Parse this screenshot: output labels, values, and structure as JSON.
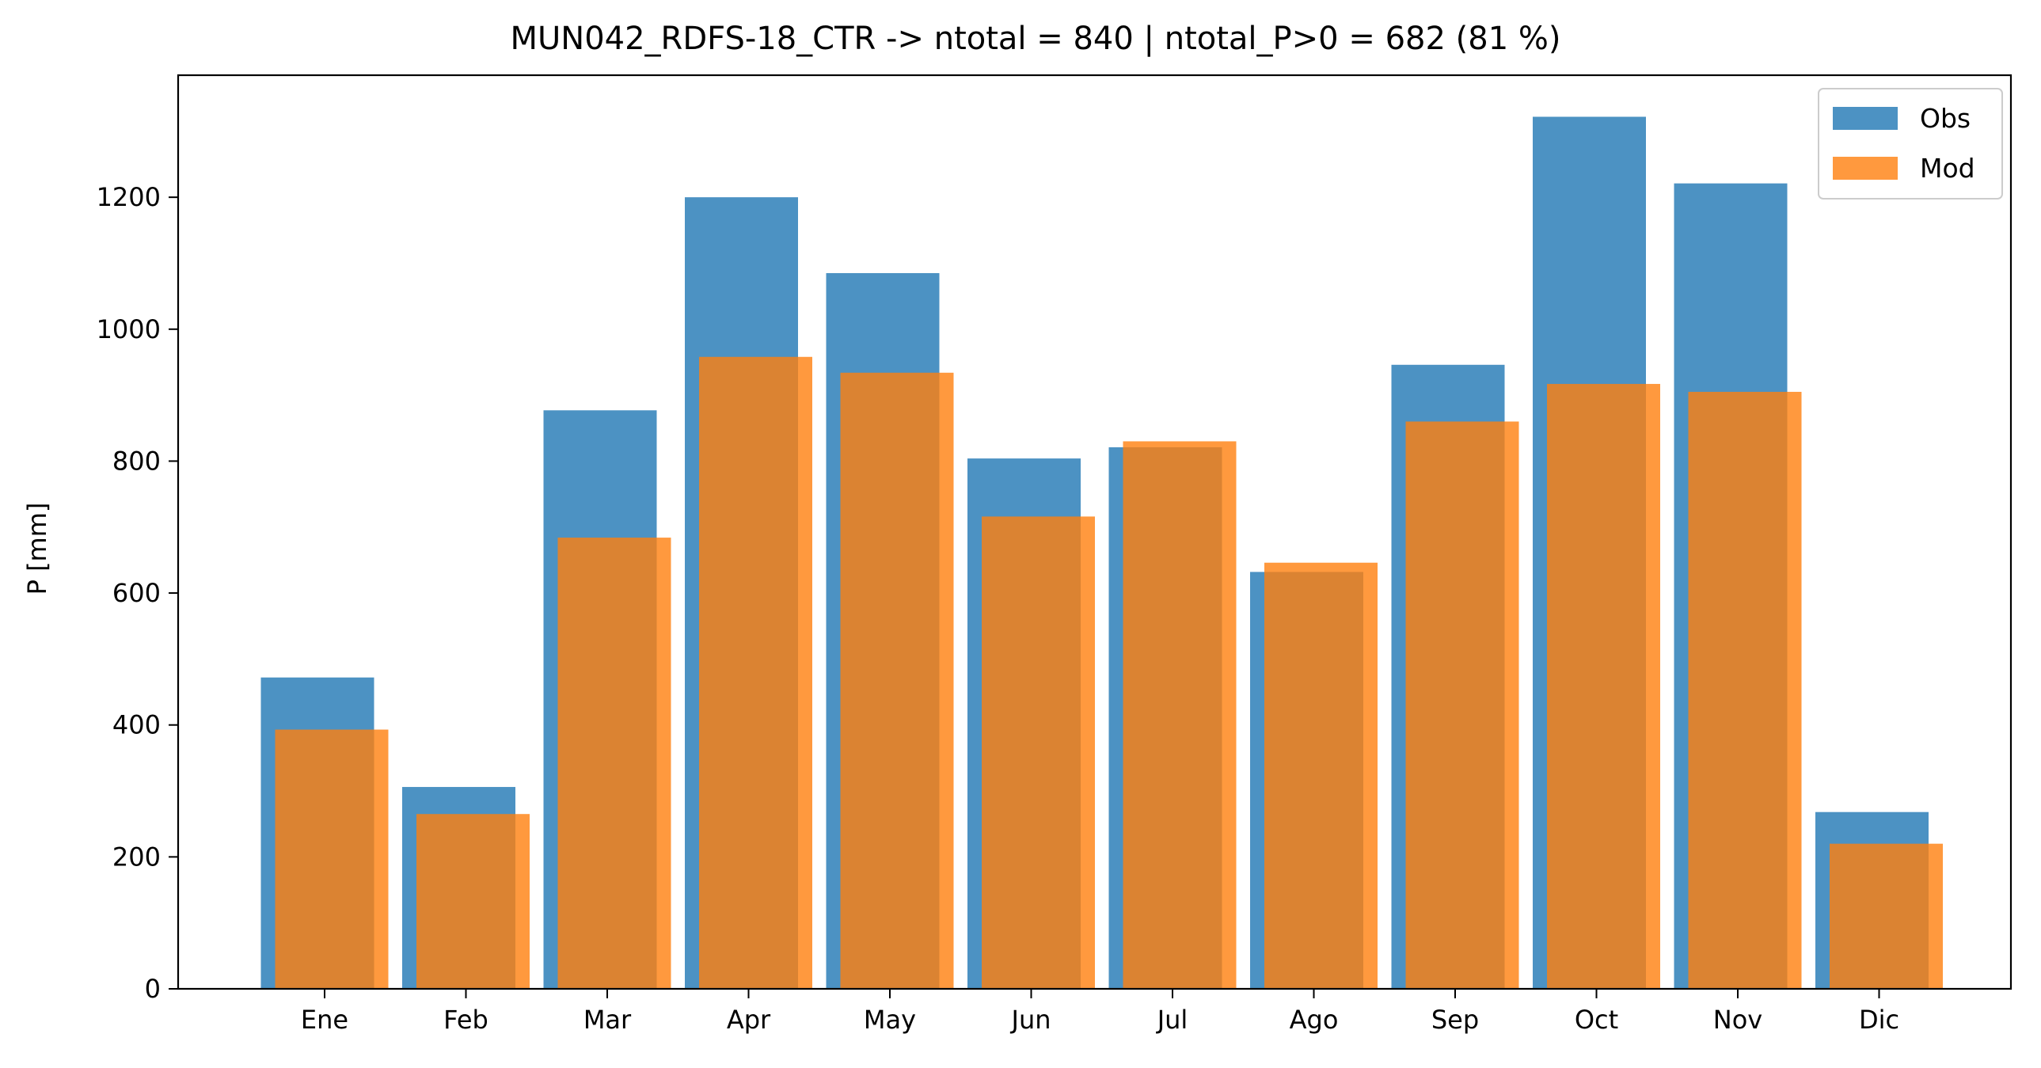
{
  "chart_data": {
    "type": "bar",
    "title": "MUN042_RDFS-18_CTR -> ntotal = 840 | ntotal_P>0 = 682 (81 %)",
    "xlabel": "",
    "ylabel": "P [mm]",
    "ylim": [
      0,
      1385
    ],
    "yticks": [
      0,
      200,
      400,
      600,
      800,
      1000,
      1200
    ],
    "categories": [
      "Ene",
      "Feb",
      "Mar",
      "Apr",
      "May",
      "Jun",
      "Jul",
      "Ago",
      "Sep",
      "Oct",
      "Nov",
      "Dic"
    ],
    "series": [
      {
        "name": "Obs",
        "color": "#1f77b4",
        "opacity": 0.8,
        "values": [
          472,
          306,
          877,
          1200,
          1085,
          804,
          821,
          632,
          946,
          1322,
          1221,
          268
        ]
      },
      {
        "name": "Mod",
        "color": "#ff7f0e",
        "opacity": 0.8,
        "values": [
          393,
          265,
          684,
          958,
          934,
          716,
          830,
          646,
          860,
          917,
          905,
          220
        ]
      }
    ],
    "legend": {
      "placement": "top-right",
      "labels": [
        "Obs",
        "Mod"
      ]
    },
    "grid": false
  }
}
